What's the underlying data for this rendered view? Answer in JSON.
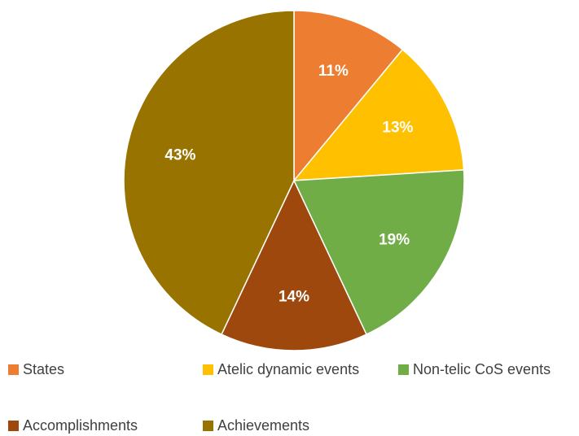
{
  "chart_data": {
    "type": "pie",
    "title": "",
    "start_angle_deg": 0,
    "direction": "clockwise",
    "legend_position": "bottom",
    "slices": [
      {
        "label": "States",
        "value": 11,
        "display": "11%",
        "color": "#ED7D31"
      },
      {
        "label": "Atelic dynamic events",
        "value": 13,
        "display": "13%",
        "color": "#FFC000"
      },
      {
        "label": "Non-telic CoS events",
        "value": 19,
        "display": "19%",
        "color": "#70AD47"
      },
      {
        "label": "Accomplishments",
        "value": 14,
        "display": "14%",
        "color": "#9E480E"
      },
      {
        "label": "Achievements",
        "value": 43,
        "display": "43%",
        "color": "#997300"
      }
    ]
  }
}
